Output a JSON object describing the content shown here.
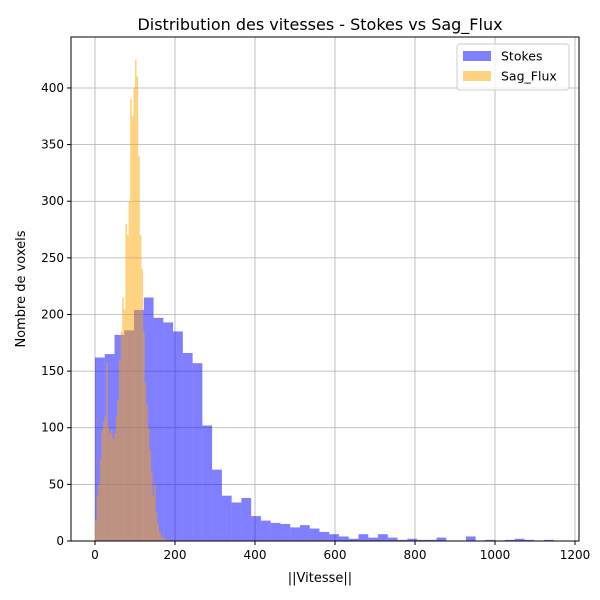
{
  "chart_data": {
    "type": "bar",
    "title": "Distribution des vitesses - Stokes vs Sag_Flux",
    "xlabel": "||Vitesse||",
    "ylabel": "Nombre de voxels",
    "xlim": [
      -60,
      1210
    ],
    "ylim": [
      0,
      445
    ],
    "xticks": [
      0,
      200,
      400,
      600,
      800,
      1000,
      1200
    ],
    "yticks": [
      0,
      50,
      100,
      150,
      200,
      250,
      300,
      350,
      400
    ],
    "grid": true,
    "legend_position": "top-right",
    "series": [
      {
        "name": "Stokes",
        "color": "#0000ff",
        "alpha": 0.5,
        "bin_start": 0,
        "bin_width": 24.4,
        "counts": [
          162,
          165,
          182,
          186,
          204,
          215,
          197,
          193,
          185,
          166,
          157,
          102,
          63,
          40,
          34,
          38,
          22,
          18,
          16,
          15,
          12,
          14,
          11,
          8,
          6,
          4,
          2,
          6,
          3,
          6,
          3,
          1,
          2,
          1,
          1,
          3,
          0,
          0,
          4,
          0,
          1,
          0,
          1,
          2,
          1,
          0,
          1
        ]
      },
      {
        "name": "Sag_Flux",
        "color": "#ffa500",
        "alpha": 0.5,
        "bin_start": 0,
        "bin_width": 4,
        "counts": [
          18,
          40,
          50,
          72,
          98,
          105,
          110,
          158,
          100,
          95,
          98,
          90,
          95,
          110,
          125,
          160,
          185,
          215,
          205,
          280,
          270,
          300,
          390,
          375,
          400,
          425,
          410,
          340,
          270,
          240,
          185,
          140,
          120,
          100,
          80,
          60,
          40,
          50,
          25,
          15,
          8,
          5,
          3,
          2,
          1,
          1
        ]
      }
    ]
  }
}
